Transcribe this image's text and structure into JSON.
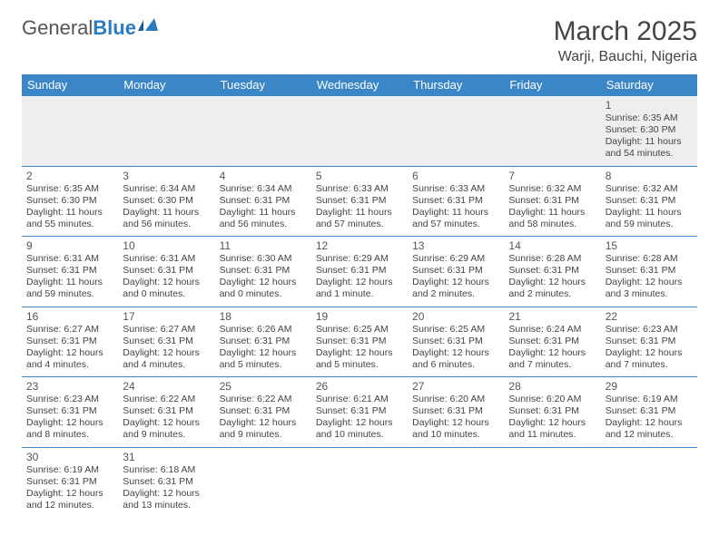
{
  "logo": {
    "part1": "General",
    "part2": "Blue"
  },
  "title": "March 2025",
  "location": "Warji, Bauchi, Nigeria",
  "colors": {
    "header_bg": "#3b86c7",
    "header_fg": "#ffffff",
    "border": "#3b86c7",
    "empty_bg": "#eeeeee"
  },
  "weekdays": [
    "Sunday",
    "Monday",
    "Tuesday",
    "Wednesday",
    "Thursday",
    "Friday",
    "Saturday"
  ],
  "weeks": [
    [
      null,
      null,
      null,
      null,
      null,
      null,
      {
        "n": "1",
        "sr": "Sunrise: 6:35 AM",
        "ss": "Sunset: 6:30 PM",
        "dl": "Daylight: 11 hours and 54 minutes."
      }
    ],
    [
      {
        "n": "2",
        "sr": "Sunrise: 6:35 AM",
        "ss": "Sunset: 6:30 PM",
        "dl": "Daylight: 11 hours and 55 minutes."
      },
      {
        "n": "3",
        "sr": "Sunrise: 6:34 AM",
        "ss": "Sunset: 6:30 PM",
        "dl": "Daylight: 11 hours and 56 minutes."
      },
      {
        "n": "4",
        "sr": "Sunrise: 6:34 AM",
        "ss": "Sunset: 6:31 PM",
        "dl": "Daylight: 11 hours and 56 minutes."
      },
      {
        "n": "5",
        "sr": "Sunrise: 6:33 AM",
        "ss": "Sunset: 6:31 PM",
        "dl": "Daylight: 11 hours and 57 minutes."
      },
      {
        "n": "6",
        "sr": "Sunrise: 6:33 AM",
        "ss": "Sunset: 6:31 PM",
        "dl": "Daylight: 11 hours and 57 minutes."
      },
      {
        "n": "7",
        "sr": "Sunrise: 6:32 AM",
        "ss": "Sunset: 6:31 PM",
        "dl": "Daylight: 11 hours and 58 minutes."
      },
      {
        "n": "8",
        "sr": "Sunrise: 6:32 AM",
        "ss": "Sunset: 6:31 PM",
        "dl": "Daylight: 11 hours and 59 minutes."
      }
    ],
    [
      {
        "n": "9",
        "sr": "Sunrise: 6:31 AM",
        "ss": "Sunset: 6:31 PM",
        "dl": "Daylight: 11 hours and 59 minutes."
      },
      {
        "n": "10",
        "sr": "Sunrise: 6:31 AM",
        "ss": "Sunset: 6:31 PM",
        "dl": "Daylight: 12 hours and 0 minutes."
      },
      {
        "n": "11",
        "sr": "Sunrise: 6:30 AM",
        "ss": "Sunset: 6:31 PM",
        "dl": "Daylight: 12 hours and 0 minutes."
      },
      {
        "n": "12",
        "sr": "Sunrise: 6:29 AM",
        "ss": "Sunset: 6:31 PM",
        "dl": "Daylight: 12 hours and 1 minute."
      },
      {
        "n": "13",
        "sr": "Sunrise: 6:29 AM",
        "ss": "Sunset: 6:31 PM",
        "dl": "Daylight: 12 hours and 2 minutes."
      },
      {
        "n": "14",
        "sr": "Sunrise: 6:28 AM",
        "ss": "Sunset: 6:31 PM",
        "dl": "Daylight: 12 hours and 2 minutes."
      },
      {
        "n": "15",
        "sr": "Sunrise: 6:28 AM",
        "ss": "Sunset: 6:31 PM",
        "dl": "Daylight: 12 hours and 3 minutes."
      }
    ],
    [
      {
        "n": "16",
        "sr": "Sunrise: 6:27 AM",
        "ss": "Sunset: 6:31 PM",
        "dl": "Daylight: 12 hours and 4 minutes."
      },
      {
        "n": "17",
        "sr": "Sunrise: 6:27 AM",
        "ss": "Sunset: 6:31 PM",
        "dl": "Daylight: 12 hours and 4 minutes."
      },
      {
        "n": "18",
        "sr": "Sunrise: 6:26 AM",
        "ss": "Sunset: 6:31 PM",
        "dl": "Daylight: 12 hours and 5 minutes."
      },
      {
        "n": "19",
        "sr": "Sunrise: 6:25 AM",
        "ss": "Sunset: 6:31 PM",
        "dl": "Daylight: 12 hours and 5 minutes."
      },
      {
        "n": "20",
        "sr": "Sunrise: 6:25 AM",
        "ss": "Sunset: 6:31 PM",
        "dl": "Daylight: 12 hours and 6 minutes."
      },
      {
        "n": "21",
        "sr": "Sunrise: 6:24 AM",
        "ss": "Sunset: 6:31 PM",
        "dl": "Daylight: 12 hours and 7 minutes."
      },
      {
        "n": "22",
        "sr": "Sunrise: 6:23 AM",
        "ss": "Sunset: 6:31 PM",
        "dl": "Daylight: 12 hours and 7 minutes."
      }
    ],
    [
      {
        "n": "23",
        "sr": "Sunrise: 6:23 AM",
        "ss": "Sunset: 6:31 PM",
        "dl": "Daylight: 12 hours and 8 minutes."
      },
      {
        "n": "24",
        "sr": "Sunrise: 6:22 AM",
        "ss": "Sunset: 6:31 PM",
        "dl": "Daylight: 12 hours and 9 minutes."
      },
      {
        "n": "25",
        "sr": "Sunrise: 6:22 AM",
        "ss": "Sunset: 6:31 PM",
        "dl": "Daylight: 12 hours and 9 minutes."
      },
      {
        "n": "26",
        "sr": "Sunrise: 6:21 AM",
        "ss": "Sunset: 6:31 PM",
        "dl": "Daylight: 12 hours and 10 minutes."
      },
      {
        "n": "27",
        "sr": "Sunrise: 6:20 AM",
        "ss": "Sunset: 6:31 PM",
        "dl": "Daylight: 12 hours and 10 minutes."
      },
      {
        "n": "28",
        "sr": "Sunrise: 6:20 AM",
        "ss": "Sunset: 6:31 PM",
        "dl": "Daylight: 12 hours and 11 minutes."
      },
      {
        "n": "29",
        "sr": "Sunrise: 6:19 AM",
        "ss": "Sunset: 6:31 PM",
        "dl": "Daylight: 12 hours and 12 minutes."
      }
    ],
    [
      {
        "n": "30",
        "sr": "Sunrise: 6:19 AM",
        "ss": "Sunset: 6:31 PM",
        "dl": "Daylight: 12 hours and 12 minutes."
      },
      {
        "n": "31",
        "sr": "Sunrise: 6:18 AM",
        "ss": "Sunset: 6:31 PM",
        "dl": "Daylight: 12 hours and 13 minutes."
      },
      null,
      null,
      null,
      null,
      null
    ]
  ]
}
